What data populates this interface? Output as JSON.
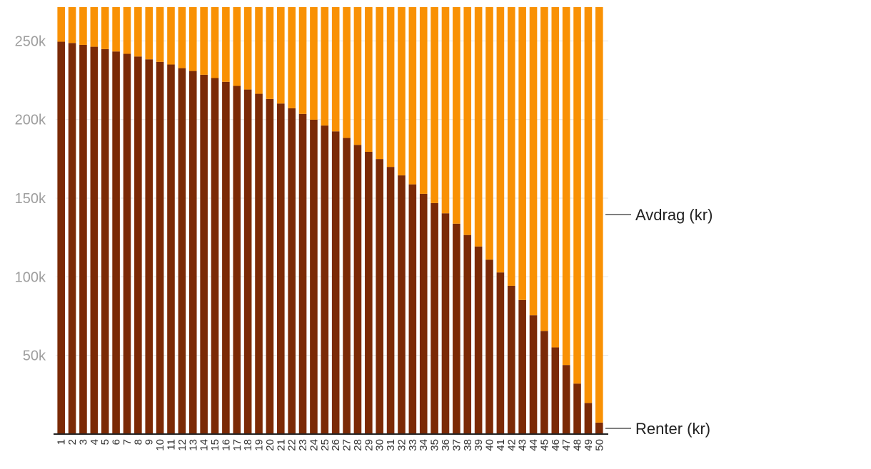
{
  "chart_data": {
    "type": "bar",
    "stacked": true,
    "categories": [
      "1",
      "2",
      "3",
      "4",
      "5",
      "6",
      "7",
      "8",
      "9",
      "10",
      "11",
      "12",
      "13",
      "14",
      "15",
      "16",
      "17",
      "18",
      "19",
      "20",
      "21",
      "22",
      "23",
      "24",
      "25",
      "26",
      "27",
      "28",
      "29",
      "30",
      "31",
      "32",
      "33",
      "34",
      "35",
      "36",
      "37",
      "38",
      "39",
      "40",
      "41",
      "42",
      "43",
      "44",
      "45",
      "46",
      "47",
      "48",
      "49",
      "50"
    ],
    "series": [
      {
        "name": "Renter (kr)",
        "color": "#7b2a06",
        "values": [
          249500,
          248700,
          247500,
          246300,
          244800,
          243300,
          241800,
          240100,
          238300,
          236700,
          235000,
          232700,
          230900,
          228500,
          226400,
          224000,
          221400,
          219100,
          216400,
          213100,
          210200,
          207200,
          203600,
          199900,
          196200,
          192500,
          188300,
          183900,
          179500,
          174900,
          169900,
          164500,
          158800,
          152800,
          146900,
          140400,
          133800,
          126600,
          119300,
          110900,
          102800,
          94300,
          85300,
          75600,
          65600,
          55100,
          43900,
          32100,
          19800,
          7300
        ]
      },
      {
        "name": "Avdrag (kr)",
        "color": "#f99104",
        "values": [
          22000,
          22800,
          24000,
          25200,
          26700,
          28200,
          29700,
          31400,
          33200,
          34800,
          36500,
          38800,
          40600,
          43000,
          45100,
          47500,
          50100,
          52400,
          55100,
          58400,
          61300,
          64300,
          67900,
          71600,
          75300,
          79000,
          83200,
          87600,
          92000,
          96600,
          101600,
          107000,
          112700,
          118700,
          124600,
          131100,
          137700,
          144900,
          152200,
          160600,
          168700,
          177200,
          186200,
          195900,
          205900,
          216400,
          227600,
          239400,
          251700,
          264200
        ]
      }
    ],
    "yticks": [
      "50k",
      "100k",
      "150k",
      "200k",
      "250k"
    ],
    "ytick_values": [
      50000,
      100000,
      150000,
      200000,
      250000
    ],
    "ylim": [
      0,
      271500
    ],
    "series_labels": {
      "top": "Avdrag (kr)",
      "bottom": "Renter (kr)"
    },
    "grid": true,
    "legend": "direct labels right"
  }
}
